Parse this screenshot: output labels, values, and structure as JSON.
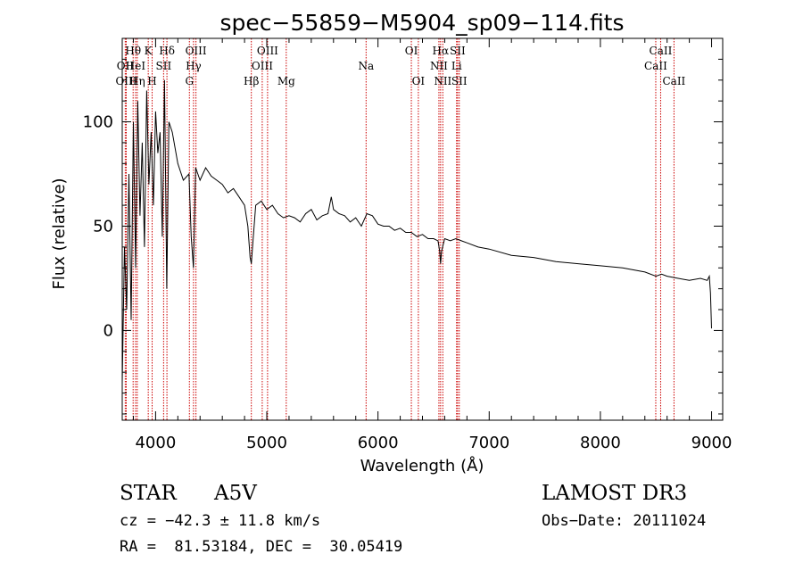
{
  "chart_data": {
    "type": "line",
    "title": "spec−55859−M5904_sp09−114.fits",
    "xlabel": "Wavelength (Å)",
    "ylabel": "Flux (relative)",
    "xlim": [
      3700,
      9100
    ],
    "ylim": [
      -43,
      140
    ],
    "x_ticks": [
      4000,
      5000,
      6000,
      7000,
      8000,
      9000
    ],
    "y_ticks": [
      0,
      50,
      100
    ],
    "line_color": "#000000",
    "marker_color": "#cc0000",
    "series": [
      {
        "name": "flux",
        "x": [
          3700,
          3720,
          3740,
          3760,
          3780,
          3800,
          3820,
          3840,
          3860,
          3880,
          3900,
          3920,
          3940,
          3960,
          3980,
          4000,
          4020,
          4040,
          4060,
          4080,
          4100,
          4120,
          4150,
          4200,
          4250,
          4300,
          4320,
          4340,
          4360,
          4400,
          4450,
          4500,
          4550,
          4600,
          4650,
          4700,
          4750,
          4800,
          4830,
          4850,
          4861,
          4875,
          4900,
          4950,
          5000,
          5050,
          5100,
          5150,
          5200,
          5250,
          5300,
          5350,
          5400,
          5450,
          5500,
          5550,
          5580,
          5600,
          5650,
          5700,
          5750,
          5800,
          5850,
          5900,
          5950,
          6000,
          6050,
          6100,
          6150,
          6200,
          6250,
          6300,
          6350,
          6400,
          6450,
          6500,
          6540,
          6555,
          6563,
          6572,
          6600,
          6650,
          6700,
          6750,
          6800,
          6900,
          7000,
          7200,
          7400,
          7600,
          7800,
          8000,
          8200,
          8400,
          8500,
          8550,
          8600,
          8700,
          8800,
          8900,
          8960,
          8980,
          8990,
          9000
        ],
        "y": [
          -25,
          40,
          10,
          75,
          5,
          100,
          30,
          110,
          55,
          90,
          40,
          115,
          70,
          95,
          60,
          105,
          85,
          95,
          45,
          120,
          20,
          100,
          95,
          80,
          72,
          75,
          45,
          30,
          78,
          72,
          78,
          74,
          72,
          70,
          66,
          68,
          64,
          60,
          50,
          35,
          32,
          42,
          60,
          62,
          58,
          60,
          56,
          54,
          55,
          54,
          52,
          56,
          58,
          53,
          55,
          56,
          64,
          58,
          56,
          55,
          52,
          54,
          50,
          56,
          55,
          51,
          50,
          50,
          48,
          49,
          47,
          47,
          45,
          46,
          44,
          44,
          43,
          38,
          32,
          38,
          44,
          43,
          44,
          43,
          42,
          40,
          39,
          36,
          35,
          33,
          32,
          31,
          30,
          28,
          26,
          27,
          26,
          25,
          24,
          25,
          24,
          26,
          18,
          1
        ]
      }
    ],
    "lines": [
      {
        "name": "O II",
        "label": "OII",
        "x": 3727,
        "row": 1,
        "color": "#cc0000"
      },
      {
        "name": "O III",
        "label": "OIII",
        "x": 3736,
        "row": 2,
        "color": "#cc0000"
      },
      {
        "name": "H theta",
        "label": "Hθ",
        "x": 3798,
        "row": 0,
        "color": "#cc0000"
      },
      {
        "name": "He I",
        "label": "HeI",
        "x": 3820,
        "row": 1,
        "color": "#cc0000"
      },
      {
        "name": "H eta",
        "label": "Hη",
        "x": 3835,
        "row": 2,
        "color": "#cc0000"
      },
      {
        "name": "Ca II K",
        "label": "K",
        "x": 3934,
        "row": 0,
        "color": "#cc0000"
      },
      {
        "name": "Ca II H",
        "label": "H",
        "x": 3969,
        "row": 2,
        "color": "#cc0000"
      },
      {
        "name": "S II",
        "label": "SII",
        "x": 4072,
        "row": 1,
        "color": "#cc0000"
      },
      {
        "name": "H delta",
        "label": "Hδ",
        "x": 4102,
        "row": 0,
        "color": "#cc0000"
      },
      {
        "name": "G band",
        "label": "G",
        "x": 4304,
        "row": 2,
        "color": "#cc0000"
      },
      {
        "name": "H gamma",
        "label": "Hγ",
        "x": 4341,
        "row": 1,
        "color": "#cc0000"
      },
      {
        "name": "O III 4363",
        "label": "OIII",
        "x": 4363,
        "row": 0,
        "color": "#cc0000"
      },
      {
        "name": "H beta",
        "label": "Hβ",
        "x": 4861,
        "row": 2,
        "color": "#cc0000"
      },
      {
        "name": "O III 4959",
        "label": "OIII",
        "x": 4959,
        "row": 1,
        "color": "#cc0000"
      },
      {
        "name": "O III 5007",
        "label": "OIII",
        "x": 5007,
        "row": 0,
        "color": "#cc0000"
      },
      {
        "name": "Mg",
        "label": "Mg",
        "x": 5175,
        "row": 2,
        "color": "#cc0000"
      },
      {
        "name": "Na",
        "label": "Na",
        "x": 5893,
        "row": 1,
        "color": "#cc0000"
      },
      {
        "name": "O I 6300",
        "label": "OI",
        "x": 6300,
        "row": 0,
        "color": "#cc0000"
      },
      {
        "name": "O I 6363",
        "label": "OI",
        "x": 6363,
        "row": 2,
        "color": "#cc0000"
      },
      {
        "name": "N II 6548",
        "label": "NII",
        "x": 6548,
        "row": 1,
        "color": "#cc0000"
      },
      {
        "name": "H alpha",
        "label": "Hα",
        "x": 6563,
        "row": 0,
        "color": "#cc0000"
      },
      {
        "name": "N II 6583",
        "label": "NII",
        "x": 6583,
        "row": 2,
        "color": "#cc0000"
      },
      {
        "name": "Li",
        "label": "Li",
        "x": 6707,
        "row": 1,
        "color": "#cc0000"
      },
      {
        "name": "S II 6716",
        "label": "SII",
        "x": 6716,
        "row": 0,
        "color": "#cc0000"
      },
      {
        "name": "S II 6731",
        "label": "SII",
        "x": 6731,
        "row": 2,
        "color": "#cc0000"
      },
      {
        "name": "Ca II 8498",
        "label": "CaII",
        "x": 8498,
        "row": 1,
        "color": "#cc0000"
      },
      {
        "name": "Ca II 8542",
        "label": "CaII",
        "x": 8542,
        "row": 0,
        "color": "#cc0000"
      },
      {
        "name": "Ca II 8662",
        "label": "CaII",
        "x": 8662,
        "row": 2,
        "color": "#cc0000"
      }
    ]
  },
  "info": {
    "object_class": "STAR",
    "subclass": "A5V",
    "survey": "LAMOST DR3",
    "redshift": "cz = −42.3 ± 11.8 km/s",
    "obs_date": "Obs−Date: 20111024",
    "coords": "RA =  81.53184, DEC =  30.05419"
  }
}
